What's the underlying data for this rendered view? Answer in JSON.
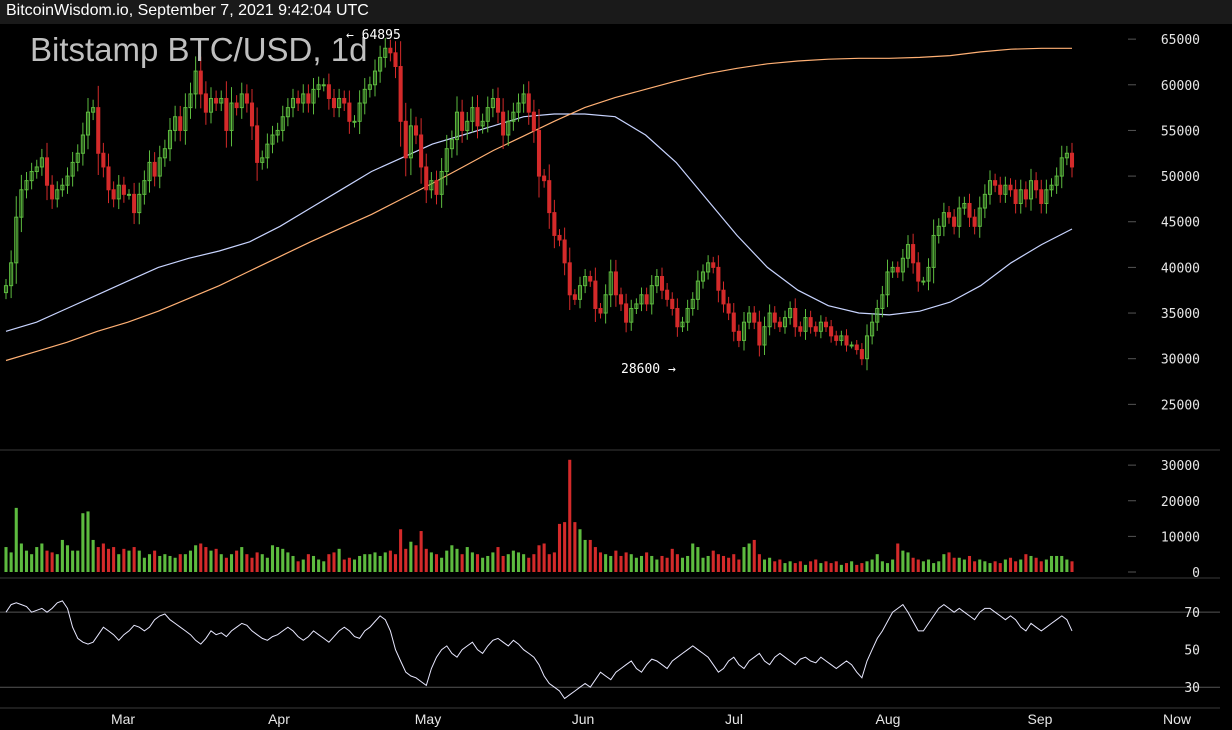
{
  "header": {
    "text": "BitcoinWisdom.io, September 7, 2021 9:42:04 UTC"
  },
  "colors": {
    "up": "#5dbb3f",
    "down": "#d42a2a",
    "ma_short": "#c8d4ff",
    "ma_long": "#ffb074",
    "rsi": "#e8e8ff",
    "grid": "#2a2a2a"
  },
  "chart_data": {
    "type": "candlestick",
    "title": "Bitstamp BTC/USD, 1d",
    "price_axis": {
      "ticks": [
        25000,
        30000,
        35000,
        40000,
        45000,
        50000,
        55000,
        60000,
        65000
      ],
      "range": [
        20000,
        66000
      ]
    },
    "volume_axis": {
      "ticks": [
        0,
        10000,
        20000,
        30000
      ],
      "range": [
        0,
        32000
      ]
    },
    "rsi_axis": {
      "ticks": [
        30,
        50,
        70
      ],
      "range": [
        20,
        85
      ]
    },
    "x_axis_labels": [
      "Mar",
      "Apr",
      "May",
      "Jun",
      "Jul",
      "Aug",
      "Sep",
      "Now"
    ],
    "annotations": {
      "high": "← 64895",
      "low": "28600 →"
    },
    "close_series_approx": [
      38000,
      40500,
      45500,
      48500,
      49500,
      50500,
      51000,
      52000,
      49000,
      47500,
      48500,
      49000,
      50000,
      51500,
      52500,
      54500,
      57000,
      57500,
      52500,
      51000,
      48500,
      47500,
      49000,
      48000,
      48000,
      46000,
      48000,
      49500,
      51500,
      50000,
      52000,
      53000,
      55000,
      56500,
      55000,
      57500,
      59000,
      61500,
      59000,
      57000,
      58500,
      58000,
      58500,
      55000,
      58000,
      57500,
      59000,
      58000,
      55500,
      51500,
      52000,
      53500,
      54500,
      55000,
      56500,
      57500,
      58500,
      58000,
      59000,
      58000,
      59500,
      60000,
      60000,
      58500,
      57500,
      58500,
      58000,
      56000,
      56000,
      58000,
      59500,
      60000,
      61500,
      63000,
      64000,
      63500,
      62000,
      56000,
      52000,
      55500,
      54500,
      51000,
      48500,
      49500,
      48000,
      50500,
      53000,
      54000,
      57000,
      55000,
      56000,
      57500,
      55500,
      56000,
      57500,
      58500,
      57000,
      54500,
      56000,
      57000,
      58000,
      59000,
      57000,
      55000,
      50000,
      49500,
      46000,
      43500,
      43000,
      40500,
      37000,
      36500,
      38000,
      39000,
      38500,
      35500,
      35000,
      37000,
      39500,
      37000,
      36000,
      34000,
      35500,
      36000,
      37000,
      36000,
      38000,
      39000,
      37500,
      36500,
      35500,
      33500,
      34000,
      35500,
      36500,
      38500,
      39500,
      40500,
      40000,
      37500,
      36000,
      35000,
      33000,
      32000,
      34000,
      35000,
      34000,
      31500,
      33500,
      35000,
      34000,
      33500,
      34500,
      35500,
      33500,
      33000,
      34500,
      33500,
      33000,
      34000,
      33500,
      32500,
      32000,
      32500,
      31500,
      31500,
      31000,
      30000,
      32500,
      34000,
      35500,
      37000,
      39500,
      40000,
      39500,
      41000,
      42500,
      40500,
      38500,
      38500,
      40000,
      43500,
      44500,
      46000,
      45500,
      44500,
      46500,
      47000,
      45500,
      44500,
      46500,
      48000,
      49500,
      49000,
      48000,
      49000,
      48500,
      47000,
      48500,
      47500,
      49500,
      48500,
      47000,
      48500,
      49000,
      50000,
      52000,
      52500,
      51000
    ],
    "ma_short_approx": [
      33000,
      34000,
      35500,
      37000,
      38500,
      40000,
      41000,
      41800,
      42800,
      44500,
      46500,
      48500,
      50500,
      52000,
      53500,
      54500,
      55500,
      56500,
      56800,
      56800,
      56500,
      54500,
      51500,
      47500,
      43500,
      40000,
      37500,
      35800,
      35000,
      34800,
      35200,
      36200,
      38000,
      40500,
      42500,
      44200
    ],
    "ma_long_approx": [
      29800,
      30800,
      31800,
      33000,
      34000,
      35200,
      36600,
      38000,
      39600,
      41200,
      42800,
      44300,
      45800,
      47500,
      49200,
      51000,
      52800,
      54400,
      56000,
      57500,
      58600,
      59500,
      60400,
      61200,
      61800,
      62300,
      62600,
      62800,
      62900,
      62900,
      63000,
      63200,
      63600,
      63900,
      64000,
      64000
    ],
    "volume_series_approx": [
      7000,
      5500,
      18000,
      8000,
      6000,
      5000,
      7000,
      8000,
      6000,
      5500,
      5000,
      9000,
      7500,
      6000,
      6000,
      16500,
      17000,
      9000,
      7000,
      8000,
      6500,
      7000,
      5000,
      6500,
      6000,
      7000,
      6000,
      4000,
      5000,
      6000,
      4500,
      5000,
      4500,
      4000,
      5000,
      5000,
      6000,
      7500,
      8000,
      7000,
      6000,
      6500,
      5000,
      4000,
      5000,
      6000,
      7000,
      5000,
      4000,
      5500,
      5000,
      4000,
      7500,
      7000,
      6500,
      5500,
      4500,
      3000,
      3500,
      5000,
      4500,
      3500,
      3000,
      5000,
      5500,
      6500,
      3500,
      4000,
      3500,
      4500,
      5000,
      5000,
      5500,
      4500,
      5500,
      6000,
      5000,
      12000,
      6500,
      8500,
      7500,
      11500,
      6500,
      5500,
      5000,
      4000,
      6000,
      7500,
      6500,
      5000,
      7000,
      5500,
      5000,
      4000,
      4500,
      5500,
      7000,
      4500,
      5000,
      6000,
      5500,
      5000,
      4000,
      5000,
      7500,
      8000,
      5000,
      5500,
      13500,
      14000,
      31500,
      14000,
      12000,
      9000,
      9000,
      7000,
      5500,
      5000,
      4500,
      6000,
      4500,
      5500,
      5000,
      4000,
      4500,
      5500,
      4500,
      3500,
      4500,
      4000,
      6500,
      5000,
      4000,
      4500,
      8000,
      7000,
      4000,
      4500,
      6000,
      5000,
      4500,
      4000,
      5000,
      3500,
      7000,
      8000,
      9000,
      5000,
      3500,
      4000,
      3000,
      3500,
      2500,
      3000,
      2500,
      3000,
      2000,
      3000,
      3500,
      2500,
      3000,
      2500,
      3000,
      2000,
      2500,
      3000,
      2000,
      2500,
      3000,
      3500,
      5000,
      3000,
      2500,
      3500,
      8000,
      6000,
      5500,
      4000,
      3500,
      3000,
      3500,
      2500,
      3000,
      5000,
      5500,
      4000,
      4000,
      3500,
      4500,
      3000,
      3500,
      3000,
      2500,
      3000,
      2500,
      3500,
      4000,
      3000,
      3500,
      5000,
      4500,
      4000,
      3000,
      3500,
      4500,
      4500,
      4500,
      3500,
      3000
    ],
    "rsi_series_approx": [
      70,
      74,
      75,
      74,
      73,
      70,
      71,
      72,
      70,
      72,
      75,
      76,
      72,
      62,
      56,
      54,
      53,
      54,
      58,
      62,
      60,
      58,
      55,
      58,
      60,
      63,
      62,
      60,
      62,
      66,
      68,
      69,
      66,
      64,
      62,
      60,
      58,
      55,
      53,
      56,
      60,
      58,
      59,
      57,
      60,
      62,
      64,
      63,
      60,
      58,
      56,
      55,
      57,
      58,
      60,
      62,
      60,
      57,
      55,
      57,
      60,
      58,
      56,
      54,
      57,
      60,
      62,
      60,
      57,
      56,
      60,
      62,
      65,
      68,
      66,
      60,
      50,
      44,
      38,
      36,
      35,
      33,
      31,
      40,
      46,
      50,
      52,
      48,
      46,
      50,
      52,
      54,
      50,
      48,
      52,
      55,
      56,
      54,
      52,
      55,
      53,
      50,
      48,
      46,
      42,
      36,
      32,
      30,
      28,
      24,
      26,
      28,
      30,
      32,
      30,
      34,
      38,
      36,
      34,
      38,
      40,
      42,
      44,
      40,
      38,
      42,
      45,
      44,
      42,
      40,
      44,
      46,
      48,
      50,
      52,
      50,
      48,
      46,
      42,
      38,
      40,
      44,
      46,
      42,
      40,
      44,
      46,
      48,
      44,
      42,
      46,
      48,
      46,
      44,
      42,
      45,
      46,
      44,
      43,
      46,
      44,
      42,
      40,
      42,
      44,
      42,
      38,
      35,
      44,
      50,
      56,
      60,
      65,
      70,
      72,
      74,
      70,
      65,
      60,
      60,
      64,
      68,
      72,
      74,
      72,
      70,
      72,
      70,
      68,
      66,
      70,
      72,
      72,
      70,
      68,
      66,
      68,
      66,
      62,
      60,
      64,
      62,
      60,
      62,
      64,
      66,
      68,
      66,
      60
    ]
  }
}
